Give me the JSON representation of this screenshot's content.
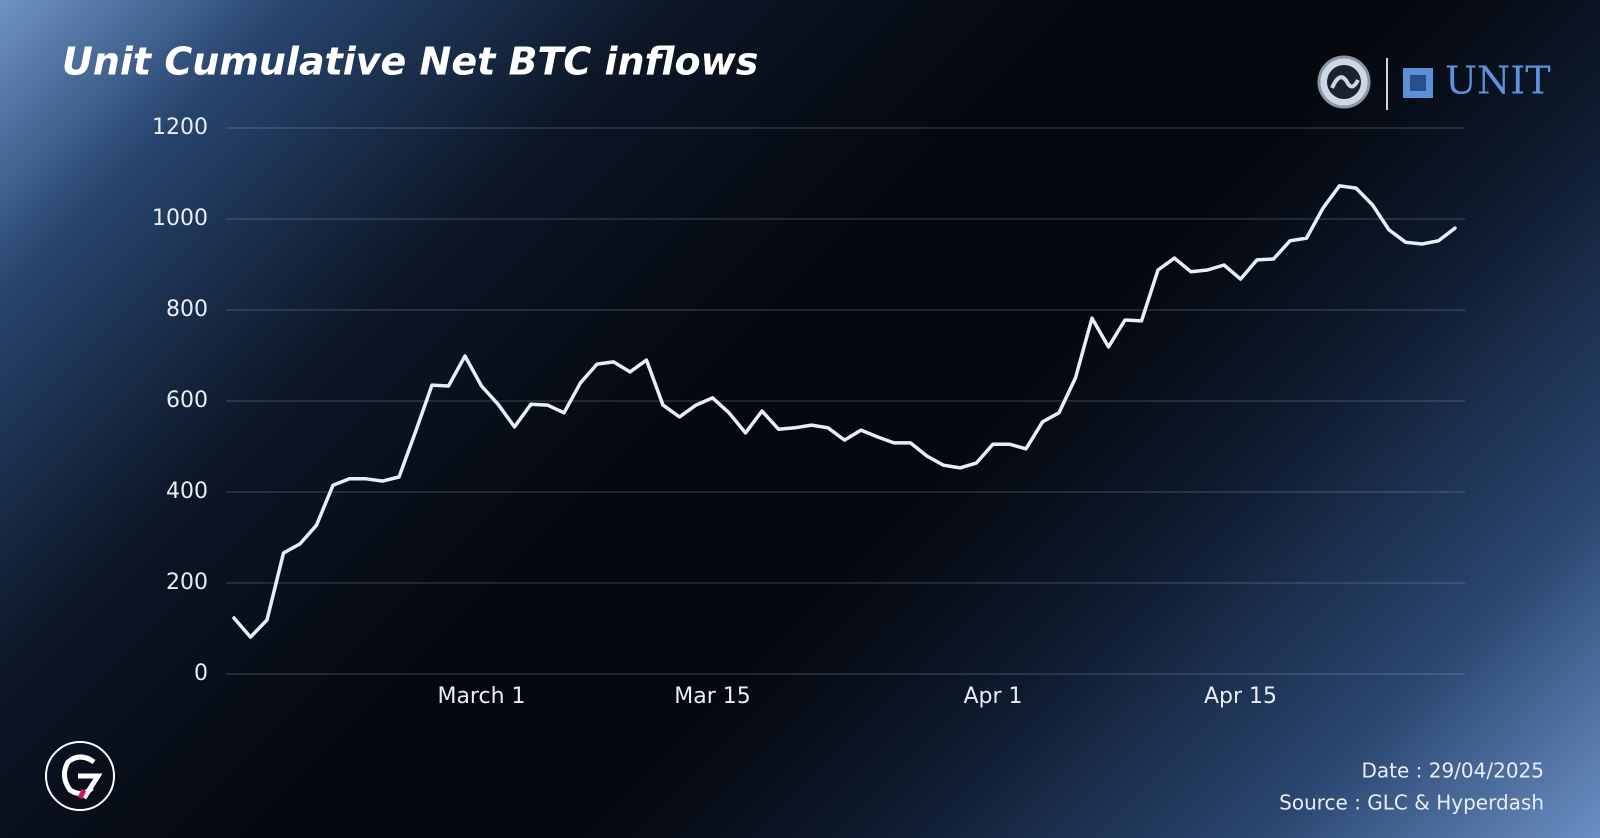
{
  "chart_data": {
    "type": "line",
    "title": "Unit Cumulative Net BTC inflows",
    "brand": "UNIT",
    "date_note": "Date : 29/04/2025",
    "source_note": "Source : GLC & Hyperdash",
    "categories": [
      null,
      null,
      null,
      null,
      null,
      null,
      null,
      null,
      null,
      null,
      null,
      null,
      null,
      null,
      null,
      "March 1",
      null,
      null,
      null,
      null,
      null,
      null,
      null,
      null,
      null,
      null,
      null,
      null,
      null,
      "Mar 15",
      null,
      null,
      null,
      null,
      null,
      null,
      null,
      null,
      null,
      null,
      null,
      null,
      null,
      null,
      null,
      null,
      "Apr 1",
      null,
      null,
      null,
      null,
      null,
      null,
      null,
      null,
      null,
      null,
      null,
      null,
      null,
      null,
      "Apr 15",
      null,
      null,
      null,
      null,
      null,
      null,
      null,
      null,
      null,
      null,
      null,
      null,
      null
    ],
    "series": [
      {
        "name": "Cumulative Net BTC inflows",
        "color": "#e6eef8",
        "values": [
          123,
          81,
          119,
          266,
          286,
          327,
          415,
          429,
          429,
          424,
          433,
          532,
          635,
          633,
          699,
          633,
          593,
          543,
          593,
          591,
          574,
          640,
          681,
          686,
          664,
          690,
          591,
          565,
          591,
          607,
          574,
          530,
          578,
          538,
          541,
          547,
          541,
          514,
          536,
          521,
          508,
          508,
          479,
          459,
          453,
          464,
          505,
          505,
          495,
          554,
          574,
          651,
          782,
          719,
          778,
          776,
          888,
          914,
          884,
          888,
          899,
          868,
          910,
          912,
          952,
          958,
          1024,
          1073,
          1068,
          1031,
          976,
          949,
          945,
          952,
          980
        ]
      }
    ],
    "ylim": [
      0,
      1200
    ],
    "yticks": [
      0,
      200,
      400,
      600,
      800,
      1000,
      1200
    ],
    "grid": true
  }
}
